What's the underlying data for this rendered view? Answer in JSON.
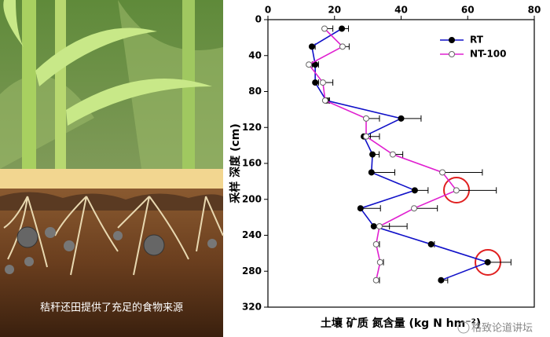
{
  "image": {
    "caption": "秸秆还田提供了充足的食物来源"
  },
  "chart_data": {
    "type": "line",
    "x_label": "土壤 矿质 氮含量 (kg N hm⁻²)",
    "y_label": "采样 深度 (cm)",
    "depths": [
      10,
      30,
      50,
      70,
      90,
      110,
      130,
      150,
      170,
      190,
      210,
      230,
      250,
      270,
      290
    ],
    "series": [
      {
        "name": "RT",
        "color": "#1010c8",
        "marker": "filled",
        "values": [
          22.2,
          13.2,
          14.2,
          14.2,
          17.5,
          40,
          28.8,
          31.4,
          31.1,
          44.1,
          27.8,
          31.8,
          49,
          66,
          52
        ],
        "errors": [
          2,
          1,
          1,
          1,
          1,
          6,
          2,
          2,
          7,
          4,
          6,
          10,
          1,
          7,
          2
        ]
      },
      {
        "name": "NT-100",
        "color": "#e020d0",
        "marker": "open",
        "values": [
          17,
          22.4,
          12.3,
          16.5,
          17.2,
          29.5,
          29.5,
          37.5,
          52.4,
          56.6,
          43.9,
          33.5,
          32.5,
          33.7,
          32.5
        ],
        "errors": [
          2.5,
          2,
          1,
          3,
          1,
          4,
          4,
          3,
          12,
          12,
          7,
          3,
          1,
          1,
          1
        ]
      }
    ],
    "xlim": [
      0,
      80
    ],
    "xticks": [
      0,
      20,
      40,
      60,
      80
    ],
    "x_axis_position": "top",
    "ylim": [
      0,
      320
    ],
    "yticks": [
      0,
      40,
      80,
      120,
      160,
      200,
      240,
      280,
      320
    ],
    "y_inverted": true,
    "legend": "upper right"
  },
  "watermark": "格致论道讲坛"
}
